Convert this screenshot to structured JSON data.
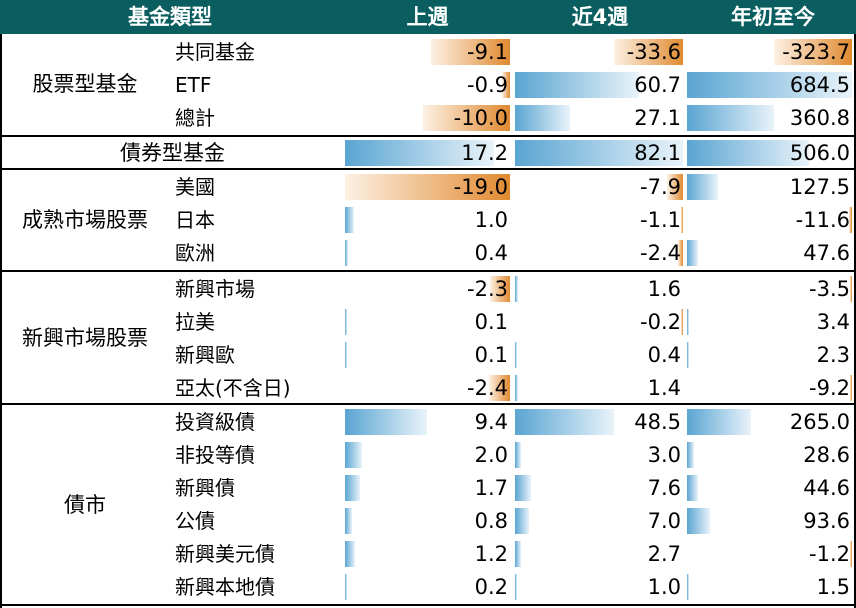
{
  "chart_data": {
    "type": "table",
    "headers": [
      "基金類型",
      "上週",
      "近4週",
      "年初至今"
    ],
    "groups": [
      {
        "name": "股票型基金",
        "rows": [
          {
            "label": "共同基金",
            "values": [
              "-9.1",
              "-33.6",
              "-323.7"
            ]
          },
          {
            "label": "ETF",
            "values": [
              "-0.9",
              "60.7",
              "684.5"
            ]
          },
          {
            "label": "總計",
            "values": [
              "-10.0",
              "27.1",
              "360.8"
            ]
          }
        ]
      },
      {
        "name": "債券型基金",
        "rows": [
          {
            "label": "",
            "values": [
              "17.2",
              "82.1",
              "506.0"
            ]
          }
        ]
      },
      {
        "name": "成熟市場股票",
        "rows": [
          {
            "label": "美國",
            "values": [
              "-19.0",
              "-7.9",
              "127.5"
            ]
          },
          {
            "label": "日本",
            "values": [
              "1.0",
              "-1.1",
              "-11.6"
            ]
          },
          {
            "label": "歐洲",
            "values": [
              "0.4",
              "-2.4",
              "47.6"
            ]
          }
        ]
      },
      {
        "name": "新興市場股票",
        "rows": [
          {
            "label": "新興市場",
            "values": [
              "-2.3",
              "1.6",
              "-3.5"
            ]
          },
          {
            "label": "拉美",
            "values": [
              "0.1",
              "-0.2",
              "3.4"
            ]
          },
          {
            "label": "新興歐",
            "values": [
              "0.1",
              "0.4",
              "2.3"
            ]
          },
          {
            "label": "亞太(不含日)",
            "values": [
              "-2.4",
              "1.4",
              "-9.2"
            ]
          }
        ]
      },
      {
        "name": "債市",
        "rows": [
          {
            "label": "投資級債",
            "values": [
              "9.4",
              "48.5",
              "265.0"
            ]
          },
          {
            "label": "非投等債",
            "values": [
              "2.0",
              "3.0",
              "28.6"
            ]
          },
          {
            "label": "新興債",
            "values": [
              "1.7",
              "7.6",
              "44.6"
            ]
          },
          {
            "label": "公債",
            "values": [
              "0.8",
              "7.0",
              "93.6"
            ]
          },
          {
            "label": "新興美元債",
            "values": [
              "1.2",
              "2.7",
              "-1.2"
            ]
          },
          {
            "label": "新興本地債",
            "values": [
              "0.2",
              "1.0",
              "1.5"
            ]
          }
        ]
      }
    ],
    "colors": {
      "header": "#0b5e60",
      "positive": "#5aa5d2",
      "negative": "#e08a30"
    }
  }
}
